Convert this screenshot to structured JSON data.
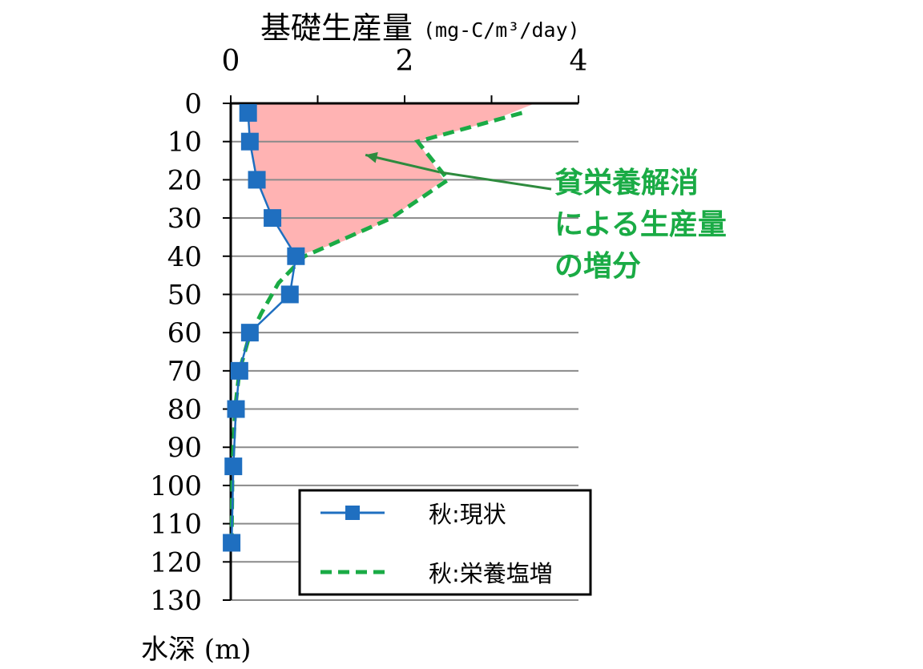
{
  "chart_data": {
    "type": "line",
    "title": "基礎生産量",
    "title_unit": "(mg-C/m³/day)",
    "xlabel": "水深 (m)",
    "x_axis_position": "top",
    "x_ticks": [
      "0",
      "2",
      "4"
    ],
    "xlim": [
      0,
      4
    ],
    "ylim": [
      0,
      130
    ],
    "y_inverted": true,
    "y_ticks": [
      "0",
      "10",
      "20",
      "30",
      "40",
      "50",
      "60",
      "70",
      "80",
      "90",
      "100",
      "110",
      "120",
      "130"
    ],
    "grid": "horizontal",
    "legend_position": "bottom-right",
    "series": [
      {
        "name": "秋:現状",
        "style": "solid line with square markers",
        "color": "#1f6fc0",
        "points": [
          {
            "x": 0.2,
            "depth": 2.5
          },
          {
            "x": 0.22,
            "depth": 10
          },
          {
            "x": 0.3,
            "depth": 20
          },
          {
            "x": 0.48,
            "depth": 30
          },
          {
            "x": 0.75,
            "depth": 40
          },
          {
            "x": 0.68,
            "depth": 50
          },
          {
            "x": 0.22,
            "depth": 60
          },
          {
            "x": 0.1,
            "depth": 70
          },
          {
            "x": 0.06,
            "depth": 80
          },
          {
            "x": 0.03,
            "depth": 95
          },
          {
            "x": 0.01,
            "depth": 115
          }
        ]
      },
      {
        "name": "秋:栄養塩増",
        "style": "dashed line",
        "color": "#1aab45",
        "points": [
          {
            "x": 3.35,
            "depth": 2.5
          },
          {
            "x": 2.15,
            "depth": 10
          },
          {
            "x": 2.5,
            "depth": 20
          },
          {
            "x": 1.85,
            "depth": 30
          },
          {
            "x": 0.85,
            "depth": 40
          },
          {
            "x": 0.55,
            "depth": 47
          },
          {
            "x": 0.35,
            "depth": 55
          },
          {
            "x": 0.2,
            "depth": 62
          },
          {
            "x": 0.1,
            "depth": 70
          },
          {
            "x": 0.05,
            "depth": 80
          },
          {
            "x": 0.02,
            "depth": 95
          },
          {
            "x": 0.01,
            "depth": 115
          }
        ]
      }
    ],
    "shaded_region": {
      "color": "#ffb3b3",
      "meaning": "increase",
      "outline": [
        {
          "x": 0.2,
          "depth": 0
        },
        {
          "x": 3.5,
          "depth": 0
        },
        {
          "x": 2.95,
          "depth": 5
        },
        {
          "x": 2.15,
          "depth": 10
        },
        {
          "x": 2.45,
          "depth": 20
        },
        {
          "x": 1.85,
          "depth": 30
        },
        {
          "x": 1.3,
          "depth": 36
        },
        {
          "x": 0.75,
          "depth": 40
        },
        {
          "x": 0.48,
          "depth": 30
        },
        {
          "x": 0.3,
          "depth": 20
        },
        {
          "x": 0.22,
          "depth": 10
        },
        {
          "x": 0.2,
          "depth": 2.5
        }
      ]
    },
    "annotation": {
      "lines": [
        "貧栄養解消",
        "による生産量",
        "の増分"
      ],
      "color": "#1aab45",
      "arrow_color": "#2e8b3e",
      "arrow_from": {
        "x": 2.4,
        "depth": 18
      },
      "arrow_to": {
        "x": 1.55,
        "depth": 13.5
      }
    }
  }
}
